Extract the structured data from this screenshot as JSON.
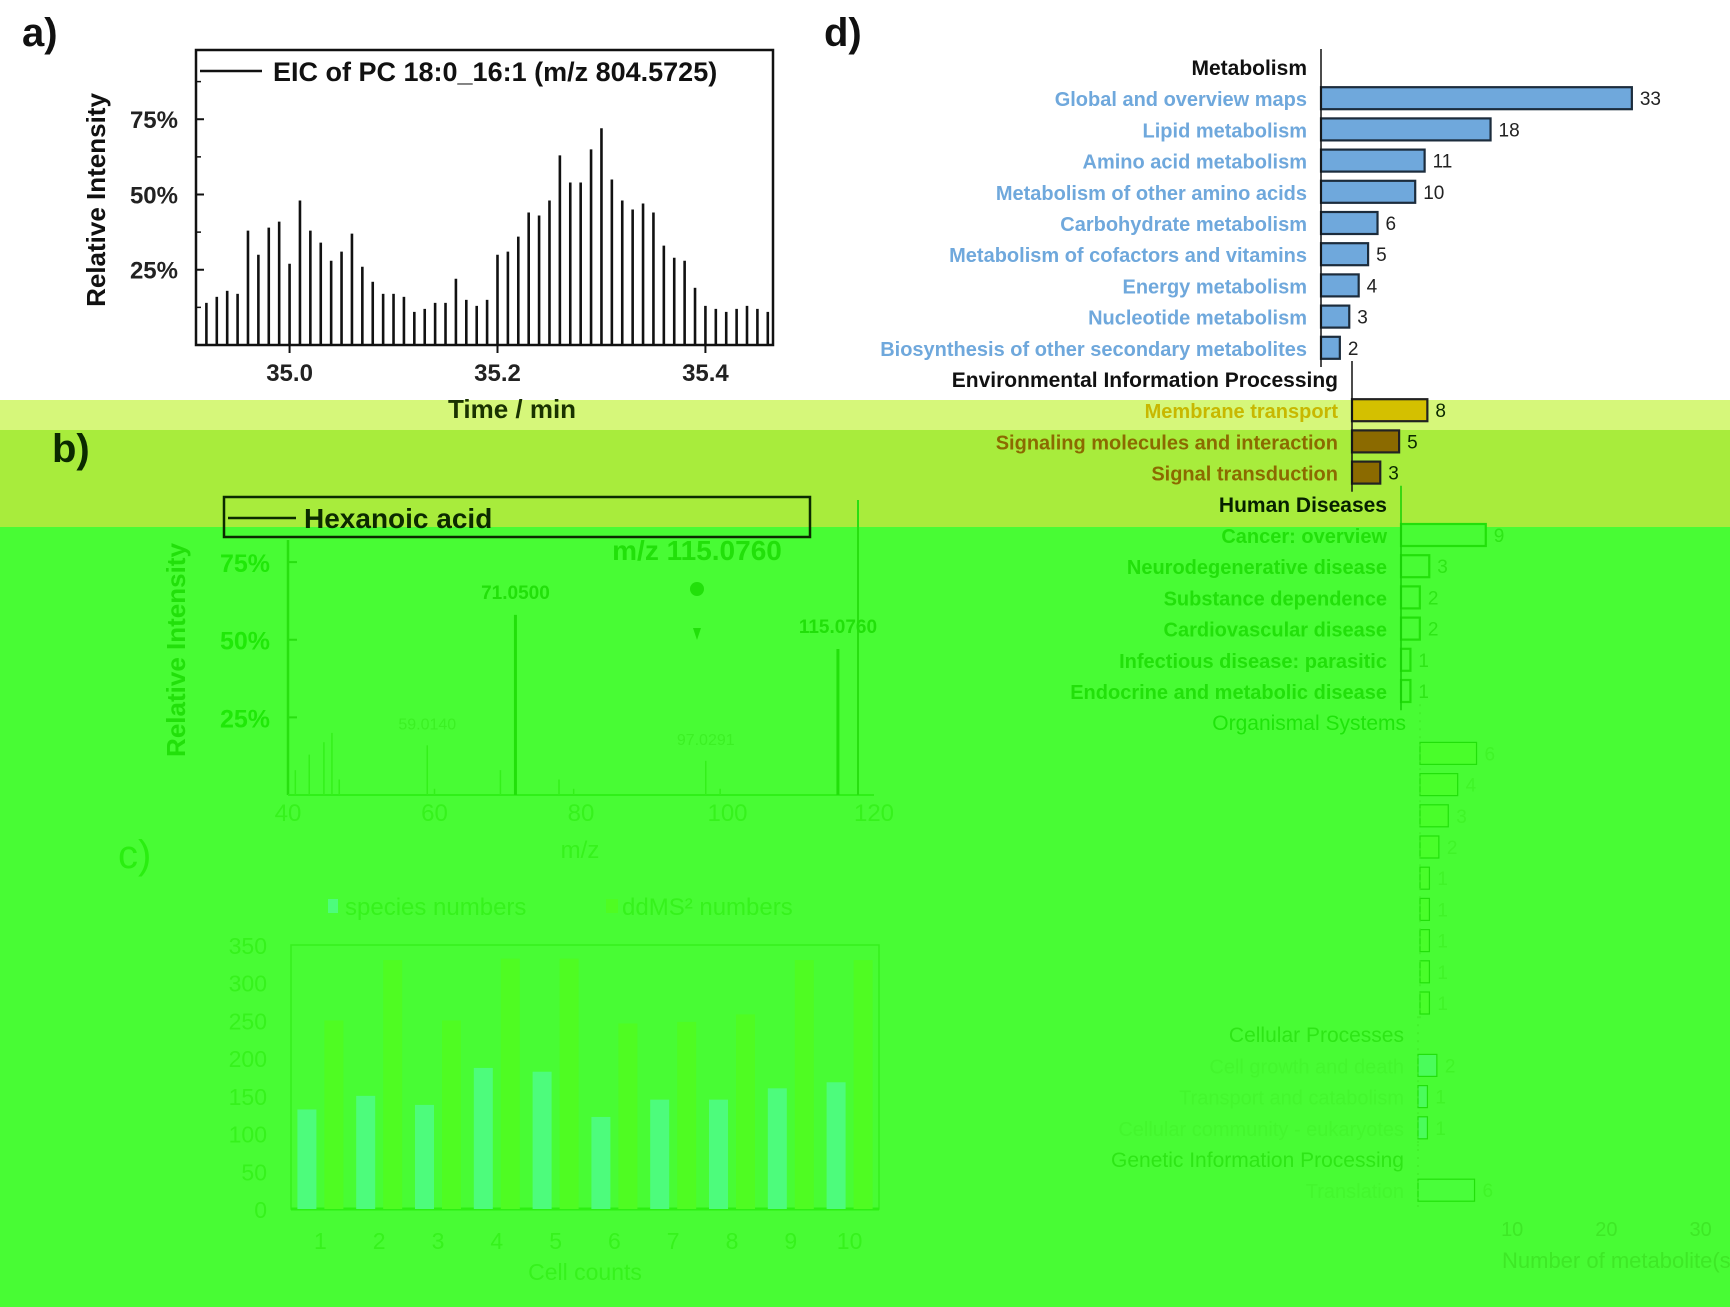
{
  "panels": {
    "a": "a)",
    "b": "b)",
    "c": "c)",
    "d": "d)"
  },
  "chart_data": [
    {
      "id": "a",
      "type": "line",
      "title": "",
      "legend": "EIC of PC 18:0_16:1 (m/z 804.5725)",
      "legend_position": "top-right",
      "xlabel": "Time / min",
      "ylabel": "Relative Intensity",
      "xlim": [
        34.91,
        35.465
      ],
      "ylim": [
        0,
        0.98
      ],
      "xticks": [
        "35.0",
        "35.2",
        "35.4"
      ],
      "yticks": [
        "25%",
        "50%",
        "75%"
      ],
      "ytick_values": [
        0.25,
        0.5,
        0.75
      ],
      "xtick_values": [
        35.0,
        35.2,
        35.4
      ],
      "x": [
        34.92,
        34.93,
        34.94,
        34.95,
        34.96,
        34.97,
        34.98,
        34.99,
        35.0,
        35.01,
        35.02,
        35.03,
        35.04,
        35.05,
        35.06,
        35.07,
        35.08,
        35.09,
        35.1,
        35.11,
        35.12,
        35.13,
        35.14,
        35.15,
        35.16,
        35.17,
        35.18,
        35.19,
        35.2,
        35.21,
        35.22,
        35.23,
        35.24,
        35.25,
        35.26,
        35.27,
        35.28,
        35.29,
        35.3,
        35.31,
        35.32,
        35.33,
        35.34,
        35.35,
        35.36,
        35.37,
        35.38,
        35.39,
        35.4,
        35.41,
        35.42,
        35.43,
        35.44,
        35.45,
        35.46
      ],
      "y": [
        0.14,
        0.16,
        0.18,
        0.17,
        0.38,
        0.3,
        0.39,
        0.41,
        0.27,
        0.48,
        0.38,
        0.34,
        0.28,
        0.31,
        0.37,
        0.26,
        0.21,
        0.17,
        0.17,
        0.16,
        0.11,
        0.12,
        0.14,
        0.14,
        0.22,
        0.15,
        0.13,
        0.15,
        0.3,
        0.31,
        0.36,
        0.44,
        0.43,
        0.48,
        0.63,
        0.54,
        0.54,
        0.65,
        0.72,
        0.55,
        0.48,
        0.45,
        0.47,
        0.44,
        0.33,
        0.29,
        0.28,
        0.19,
        0.13,
        0.12,
        0.11,
        0.12,
        0.13,
        0.12,
        0.11
      ]
    },
    {
      "id": "b",
      "type": "bar",
      "legend": "Hexanoic acid",
      "precursor_label": "m/z 115.0760",
      "xlabel": "m/z",
      "ylabel": "Relative Intensity",
      "xlim": [
        40,
        120
      ],
      "ylim": [
        0,
        0.95
      ],
      "xticks": [
        "40",
        "60",
        "80",
        "100",
        "120"
      ],
      "xtick_values": [
        40,
        60,
        80,
        100,
        120
      ],
      "yticks": [
        "25%",
        "50%",
        "75%"
      ],
      "ytick_values": [
        0.25,
        0.5,
        0.75
      ],
      "peaks": [
        {
          "mz": 41.0,
          "intensity": 0.08
        },
        {
          "mz": 42.9,
          "intensity": 0.13
        },
        {
          "mz": 44.9,
          "intensity": 0.17
        },
        {
          "mz": 46.0,
          "intensity": 0.2
        },
        {
          "mz": 47.0,
          "intensity": 0.05
        },
        {
          "mz": 59.014,
          "intensity": 0.16,
          "label": "59.0140"
        },
        {
          "mz": 60.0,
          "intensity": 0.02
        },
        {
          "mz": 69.0,
          "intensity": 0.08
        },
        {
          "mz": 71.05,
          "intensity": 0.58,
          "label": "71.0500"
        },
        {
          "mz": 77.0,
          "intensity": 0.05
        },
        {
          "mz": 79.0,
          "intensity": 0.02
        },
        {
          "mz": 97.0291,
          "intensity": 0.11,
          "label": "97.0291"
        },
        {
          "mz": 99.0,
          "intensity": 0.02
        },
        {
          "mz": 115.076,
          "intensity": 0.47,
          "label": "115.0760"
        }
      ]
    },
    {
      "id": "c",
      "type": "bar",
      "categories": [
        "1",
        "2",
        "3",
        "4",
        "5",
        "6",
        "7",
        "8",
        "9",
        "10"
      ],
      "series": [
        {
          "name": "species numbers",
          "values": [
            132,
            150,
            138,
            187,
            182,
            122,
            145,
            145,
            160,
            168
          ],
          "color": "#4dfc7c"
        },
        {
          "name": "ddMS² numbers",
          "values": [
            250,
            330,
            250,
            332,
            332,
            246,
            248,
            258,
            330,
            330
          ],
          "color": "#4ffc22"
        }
      ],
      "legend": [
        "species numbers",
        "ddMS² numbers"
      ],
      "legend_position": "top",
      "xlabel": "Cell counts",
      "ylabel": "",
      "ylim": [
        0,
        350
      ],
      "yticks": [
        "0",
        "50",
        "100",
        "150",
        "200",
        "250",
        "300",
        "350"
      ]
    },
    {
      "id": "d",
      "type": "bar",
      "orientation": "horizontal",
      "xlabel": "Number of metabolite(s)",
      "xlim": [
        0,
        36
      ],
      "xticks": [
        "10",
        "20",
        "30"
      ],
      "xtick_values": [
        10,
        20,
        30
      ],
      "groups": [
        {
          "name": "Metabolism",
          "color": "#6fa8dc",
          "items": [
            {
              "label": "Global and overview maps",
              "value": 33
            },
            {
              "label": "Lipid metabolism",
              "value": 18
            },
            {
              "label": "Amino acid metabolism",
              "value": 11
            },
            {
              "label": "Metabolism of other amino acids",
              "value": 10
            },
            {
              "label": "Carbohydrate metabolism",
              "value": 6
            },
            {
              "label": "Metabolism of cofactors and vitamins",
              "value": 5
            },
            {
              "label": "Energy metabolism",
              "value": 4
            },
            {
              "label": "Nucleotide metabolism",
              "value": 3
            },
            {
              "label": "Biosynthesis of other secondary metabolites",
              "value": 2
            }
          ]
        },
        {
          "name": "Environmental Information Processing",
          "color": "#d4c000",
          "items": [
            {
              "label": "Membrane transport",
              "value": 8
            },
            {
              "label": "Signaling molecules and interaction",
              "value": 5
            },
            {
              "label": "Signal transduction",
              "value": 3
            }
          ]
        },
        {
          "name": "Human Diseases",
          "color": "#48fc34",
          "items": [
            {
              "label": "Cancer: overview",
              "value": 9
            },
            {
              "label": "Neurodegenerative disease",
              "value": 3
            },
            {
              "label": "Substance dependence",
              "value": 2
            },
            {
              "label": "Cardiovascular disease",
              "value": 2
            },
            {
              "label": "Infectious disease: parasitic",
              "value": 1
            },
            {
              "label": "Endocrine and metabolic disease",
              "value": 1
            }
          ]
        },
        {
          "name": "Organismal Systems",
          "color": "#4bff22",
          "items": [
            {
              "label": "",
              "value": 6
            },
            {
              "label": "",
              "value": 4
            },
            {
              "label": "",
              "value": 3
            },
            {
              "label": "",
              "value": 2
            },
            {
              "label": "",
              "value": 1
            },
            {
              "label": "",
              "value": 1
            },
            {
              "label": "",
              "value": 1
            },
            {
              "label": "",
              "value": 1
            },
            {
              "label": "",
              "value": 1
            }
          ]
        },
        {
          "name": "Cellular Processes",
          "color": "#4dfc7c",
          "items": [
            {
              "label": "Cell growth and death",
              "value": 2
            },
            {
              "label": "Transport and catabolism",
              "value": 1
            },
            {
              "label": "Cellular community - eukaryotes",
              "value": 1
            }
          ]
        },
        {
          "name": "Genetic Information Processing",
          "color": "#4bff40",
          "items": [
            {
              "label": "Translation",
              "value": 6
            }
          ]
        }
      ]
    }
  ]
}
